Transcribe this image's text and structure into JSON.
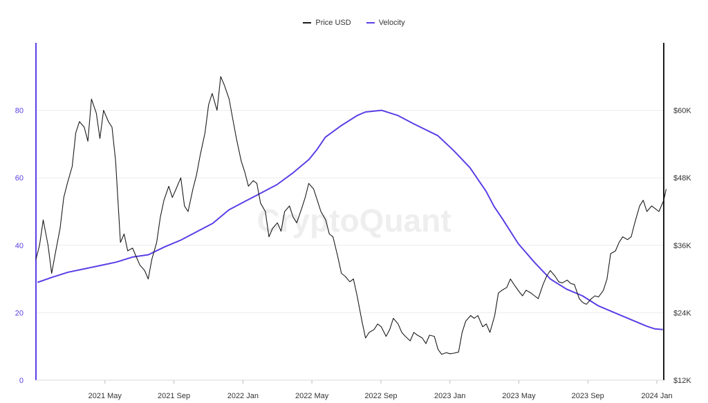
{
  "legend": {
    "price_label": "Price USD",
    "velocity_label": "Velocity"
  },
  "watermark": "CryptoQuant",
  "colors": {
    "price": "#1a1a1a",
    "velocity": "#5a3ee6",
    "left_axis": "#5a3ee6",
    "right_axis": "#1a1a1a",
    "grid": "#ececec"
  },
  "chart_data": {
    "type": "line",
    "title": "",
    "grid": true,
    "legend_position": "top-center",
    "x_ticks": [
      "2021 May",
      "2021 Sep",
      "2022 Jan",
      "2022 May",
      "2022 Sep",
      "2023 Jan",
      "2023 May",
      "2023 Sep",
      "2024 Jan"
    ],
    "x_tick_months": [
      4,
      8,
      12,
      16,
      20,
      24,
      28,
      32,
      36
    ],
    "x_range_months": [
      0,
      36.4
    ],
    "y_left": {
      "ticks": [
        0,
        20,
        40,
        60,
        80
      ],
      "tick_labels": [
        "0",
        "20",
        "40",
        "60",
        "80"
      ],
      "range": [
        0,
        100
      ]
    },
    "y_right": {
      "ticks": [
        12000,
        24000,
        36000,
        48000,
        60000
      ],
      "tick_labels": [
        "$12K",
        "$24K",
        "$36K",
        "$48K",
        "$60K"
      ],
      "range": [
        12000,
        72000
      ]
    },
    "series": [
      {
        "name": "Velocity",
        "axis": "left",
        "points": [
          [
            0.1,
            29
          ],
          [
            1,
            30.5
          ],
          [
            2,
            32
          ],
          [
            3,
            33
          ],
          [
            4,
            34
          ],
          [
            5,
            35
          ],
          [
            6,
            36.5
          ],
          [
            7,
            37.2
          ],
          [
            8,
            39.5
          ],
          [
            9,
            41.5
          ],
          [
            10,
            44
          ],
          [
            11,
            46.5
          ],
          [
            12,
            50.5
          ],
          [
            13,
            53
          ],
          [
            14,
            55.5
          ],
          [
            15,
            58
          ],
          [
            16,
            61.5
          ],
          [
            17,
            65.5
          ],
          [
            17.5,
            68.5
          ],
          [
            18,
            72
          ],
          [
            19,
            75.5
          ],
          [
            20,
            78.5
          ],
          [
            20.5,
            79.5
          ],
          [
            21.5,
            80
          ],
          [
            22.5,
            78.5
          ],
          [
            23.5,
            76
          ],
          [
            25,
            72.5
          ],
          [
            26,
            68
          ],
          [
            27,
            63
          ],
          [
            28,
            56
          ],
          [
            28.5,
            51.5
          ],
          [
            29,
            48
          ],
          [
            30,
            40.5
          ],
          [
            31,
            35
          ],
          [
            31.5,
            32.5
          ],
          [
            32,
            30
          ],
          [
            33,
            27
          ],
          [
            34,
            25
          ],
          [
            35,
            22
          ],
          [
            36,
            20
          ],
          [
            37,
            18
          ],
          [
            38,
            16
          ],
          [
            38.5,
            15.2
          ],
          [
            39,
            15
          ]
        ]
      },
      {
        "name": "Price USD",
        "axis": "right",
        "points": [
          [
            0,
            33500
          ],
          [
            0.3,
            36000
          ],
          [
            0.6,
            40500
          ],
          [
            1,
            36000
          ],
          [
            1.3,
            31000
          ],
          [
            1.6,
            34500
          ],
          [
            2,
            39000
          ],
          [
            2.3,
            44500
          ],
          [
            2.6,
            47000
          ],
          [
            3,
            50000
          ],
          [
            3.3,
            56000
          ],
          [
            3.6,
            58000
          ],
          [
            4,
            57000
          ],
          [
            4.3,
            54500
          ],
          [
            4.6,
            62000
          ],
          [
            5,
            59500
          ],
          [
            5.3,
            55000
          ],
          [
            5.6,
            60000
          ],
          [
            6,
            58000
          ],
          [
            6.3,
            57000
          ],
          [
            6.6,
            51000
          ],
          [
            7,
            36500
          ],
          [
            7.3,
            38000
          ],
          [
            7.6,
            35000
          ],
          [
            8,
            35500
          ],
          [
            8.3,
            34000
          ],
          [
            8.6,
            32500
          ],
          [
            9,
            31500
          ],
          [
            9.3,
            30000
          ],
          [
            9.6,
            33500
          ],
          [
            10,
            36500
          ],
          [
            10.3,
            41000
          ],
          [
            10.6,
            44000
          ],
          [
            11,
            46500
          ],
          [
            11.3,
            44500
          ],
          [
            11.6,
            46000
          ],
          [
            12,
            48000
          ],
          [
            12.3,
            43000
          ],
          [
            12.6,
            42000
          ],
          [
            13,
            46000
          ],
          [
            13.3,
            48500
          ],
          [
            13.6,
            52000
          ],
          [
            14,
            56000
          ],
          [
            14.3,
            61000
          ],
          [
            14.6,
            63000
          ],
          [
            15,
            60000
          ],
          [
            15.3,
            66000
          ],
          [
            15.6,
            64500
          ],
          [
            16,
            62000
          ],
          [
            16.3,
            58500
          ],
          [
            16.6,
            55000
          ],
          [
            17,
            51000
          ],
          [
            17.3,
            49000
          ],
          [
            17.6,
            46500
          ],
          [
            18,
            47500
          ],
          [
            18.3,
            47000
          ],
          [
            18.6,
            43500
          ],
          [
            19,
            42000
          ],
          [
            19.3,
            37500
          ],
          [
            19.6,
            39000
          ],
          [
            20,
            40000
          ],
          [
            20.3,
            38500
          ],
          [
            20.6,
            42000
          ],
          [
            21,
            43000
          ],
          [
            21.3,
            41000
          ],
          [
            21.6,
            40000
          ],
          [
            22,
            42500
          ],
          [
            22.3,
            44500
          ],
          [
            22.6,
            47000
          ],
          [
            23,
            46000
          ],
          [
            23.3,
            44000
          ],
          [
            23.6,
            42000
          ],
          [
            24,
            40500
          ],
          [
            24.3,
            38000
          ],
          [
            24.6,
            37500
          ],
          [
            25,
            34000
          ],
          [
            25.3,
            31000
          ],
          [
            25.6,
            30500
          ],
          [
            26,
            29500
          ],
          [
            26.3,
            30000
          ],
          [
            26.6,
            27000
          ],
          [
            27,
            22500
          ],
          [
            27.3,
            19500
          ],
          [
            27.6,
            20500
          ],
          [
            28,
            21000
          ],
          [
            28.3,
            22000
          ],
          [
            28.6,
            21500
          ],
          [
            29,
            19800
          ],
          [
            29.3,
            21000
          ],
          [
            29.6,
            23000
          ],
          [
            30,
            22000
          ],
          [
            30.3,
            20500
          ],
          [
            30.6,
            19800
          ],
          [
            31,
            19000
          ],
          [
            31.3,
            20500
          ],
          [
            31.6,
            20000
          ],
          [
            32,
            19500
          ],
          [
            32.3,
            18500
          ],
          [
            32.6,
            20000
          ],
          [
            33,
            19800
          ],
          [
            33.3,
            17500
          ],
          [
            33.6,
            16600
          ],
          [
            34,
            16900
          ],
          [
            34.3,
            16700
          ],
          [
            34.6,
            16800
          ],
          [
            35,
            17000
          ],
          [
            35.3,
            20500
          ],
          [
            35.6,
            22500
          ],
          [
            36,
            23500
          ],
          [
            36.3,
            23000
          ],
          [
            36.6,
            23500
          ],
          [
            37,
            21500
          ],
          [
            37.3,
            22000
          ],
          [
            37.6,
            20500
          ],
          [
            38,
            23500
          ],
          [
            38.3,
            27500
          ],
          [
            38.6,
            28000
          ],
          [
            39,
            28500
          ],
          [
            39.3,
            30000
          ],
          [
            39.6,
            29000
          ],
          [
            40,
            27800
          ],
          [
            40.3,
            27000
          ],
          [
            40.6,
            28000
          ],
          [
            41,
            27500
          ],
          [
            41.3,
            27000
          ],
          [
            41.6,
            26500
          ],
          [
            42,
            29000
          ],
          [
            42.3,
            30500
          ],
          [
            42.6,
            31500
          ],
          [
            43,
            30500
          ],
          [
            43.3,
            29500
          ],
          [
            43.6,
            29300
          ],
          [
            44,
            29800
          ],
          [
            44.3,
            29200
          ],
          [
            44.6,
            29000
          ],
          [
            45,
            26500
          ],
          [
            45.3,
            25800
          ],
          [
            45.6,
            25500
          ],
          [
            46,
            26500
          ],
          [
            46.3,
            27000
          ],
          [
            46.6,
            26800
          ],
          [
            47,
            28000
          ],
          [
            47.3,
            30000
          ],
          [
            47.6,
            34500
          ],
          [
            48,
            35000
          ],
          [
            48.3,
            36500
          ],
          [
            48.6,
            37500
          ],
          [
            49,
            37000
          ],
          [
            49.3,
            37500
          ],
          [
            49.6,
            40000
          ],
          [
            50,
            43000
          ],
          [
            50.3,
            44000
          ],
          [
            50.6,
            42000
          ],
          [
            51,
            43000
          ],
          [
            51.3,
            42500
          ],
          [
            51.6,
            42000
          ],
          [
            52,
            44000
          ],
          [
            52.2,
            46000
          ]
        ]
      }
    ],
    "notes": "Velocity x-values are in months since 2021-01-01; Price x-values are in half-months since 2021-01-01 (index/2 = months)"
  }
}
